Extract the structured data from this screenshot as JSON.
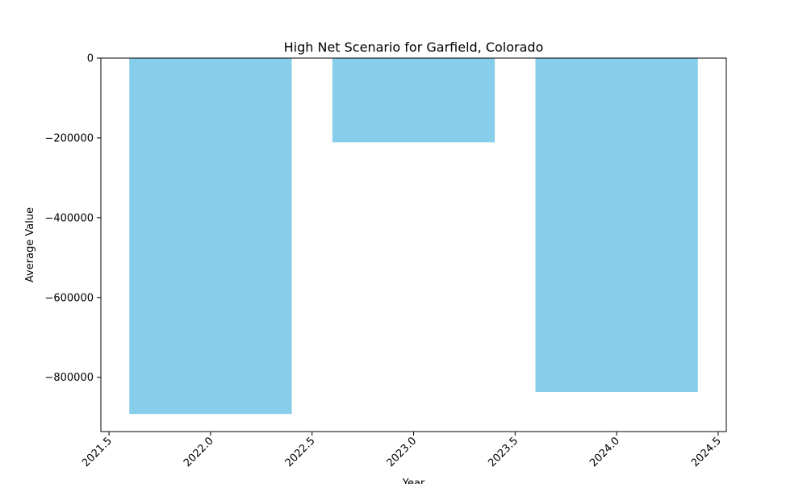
{
  "chart_data": {
    "type": "bar",
    "title": "High Net Scenario for Garfield, Colorado",
    "xlabel": "Year",
    "ylabel": "Average Value",
    "x": [
      2022.0,
      2023.0,
      2024.0
    ],
    "values": [
      -892000,
      -211000,
      -837000
    ],
    "bar_width": 0.8,
    "xlim": [
      2021.46,
      2024.54
    ],
    "ylim": [
      -936000,
      0
    ],
    "x_ticks": [
      2021.5,
      2022.0,
      2022.5,
      2023.0,
      2023.5,
      2024.0,
      2024.5
    ],
    "x_tick_labels": [
      "2021.5",
      "2022.0",
      "2022.5",
      "2023.0",
      "2023.5",
      "2024.0",
      "2024.5"
    ],
    "y_ticks": [
      0,
      -200000,
      -400000,
      -600000,
      -800000
    ],
    "y_tick_labels": [
      "0",
      "−200000",
      "−400000",
      "−600000",
      "−800000"
    ],
    "grid": false,
    "bar_color": "#87CEEB"
  }
}
